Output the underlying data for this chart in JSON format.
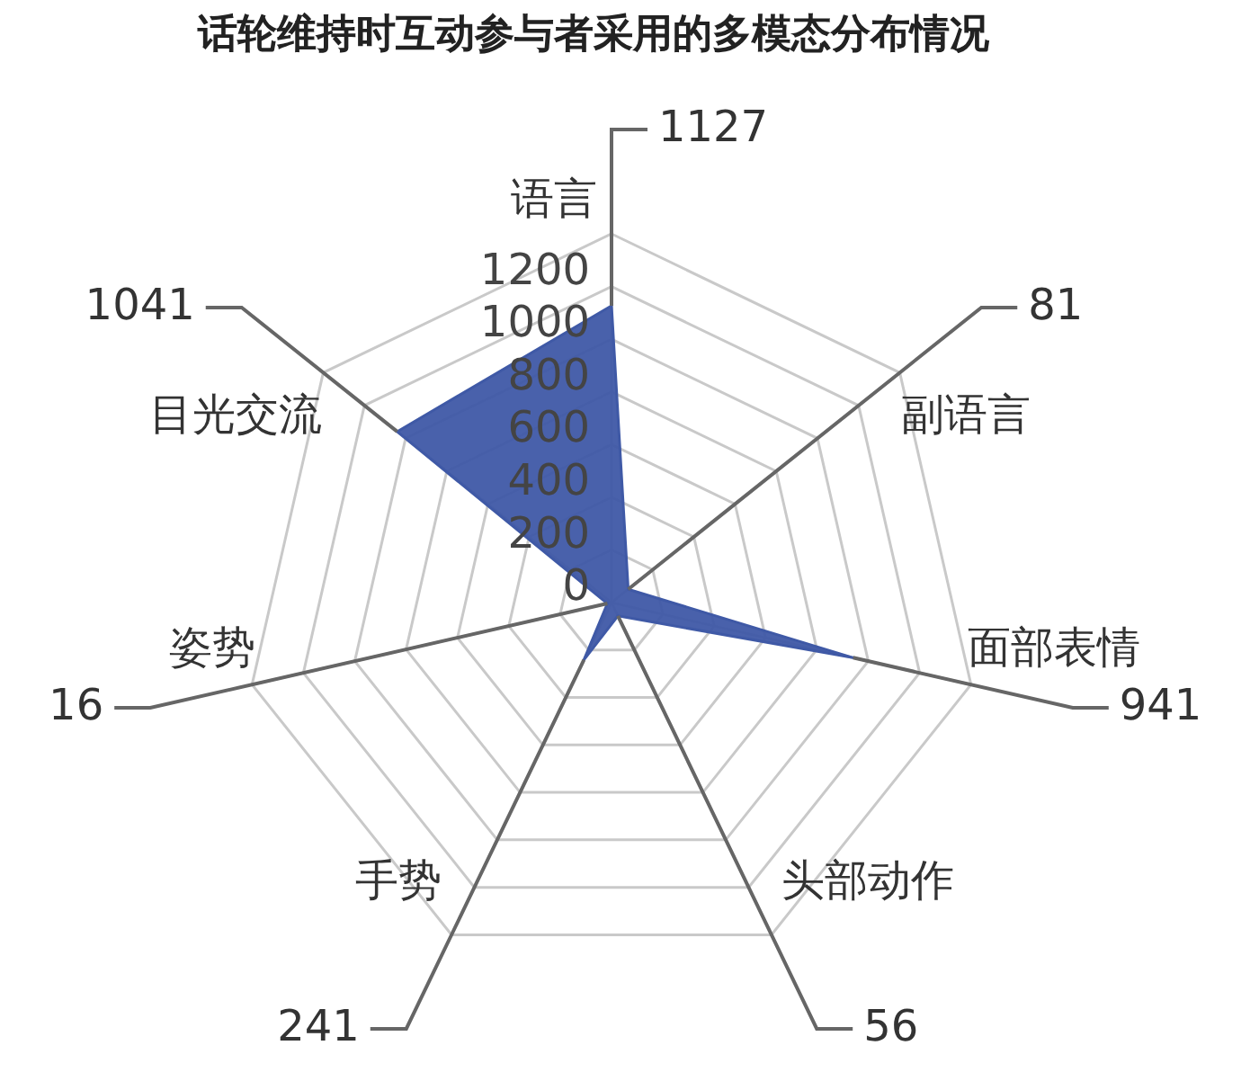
{
  "chart_data": {
    "type": "radar",
    "title": "话轮维持时互动参与者采用的多模态分布情况",
    "categories": [
      "语言",
      "副语言",
      "面部表情",
      "头部动作",
      "手势",
      "姿势",
      "目光交流"
    ],
    "series": [
      {
        "color": "#3f59a6",
        "values": [
          1127,
          81,
          941,
          56,
          241,
          16,
          1041
        ]
      }
    ],
    "ylim": [
      0,
      1400
    ],
    "yticks": [
      0,
      200,
      400,
      600,
      800,
      1000,
      1200
    ],
    "grid": true,
    "annotations": [
      "1127",
      "81",
      "941",
      "56",
      "241",
      "16",
      "1041"
    ]
  }
}
